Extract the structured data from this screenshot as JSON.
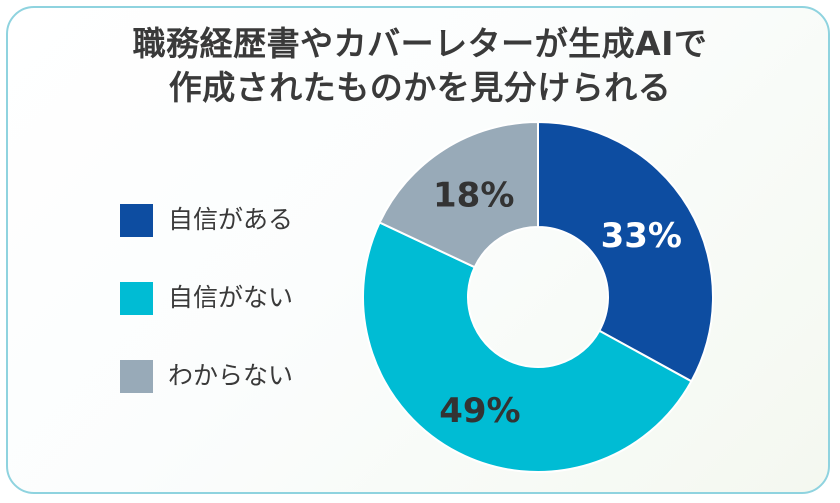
{
  "title_line1": "職務経歴書やカバーレターが生成AIで",
  "title_line2": "作成されたものかを見分けられる",
  "chart_data": {
    "type": "pie",
    "categories": [
      "自信がある",
      "自信がない",
      "わからない"
    ],
    "values": [
      33,
      49,
      18
    ],
    "value_labels": [
      "33%",
      "49%",
      "18%"
    ],
    "colors": [
      "#0d4da1",
      "#00bcd4",
      "#98aab8"
    ],
    "label_colors": [
      "#ffffff",
      "#333333",
      "#333333"
    ],
    "legend_placement": "left"
  }
}
